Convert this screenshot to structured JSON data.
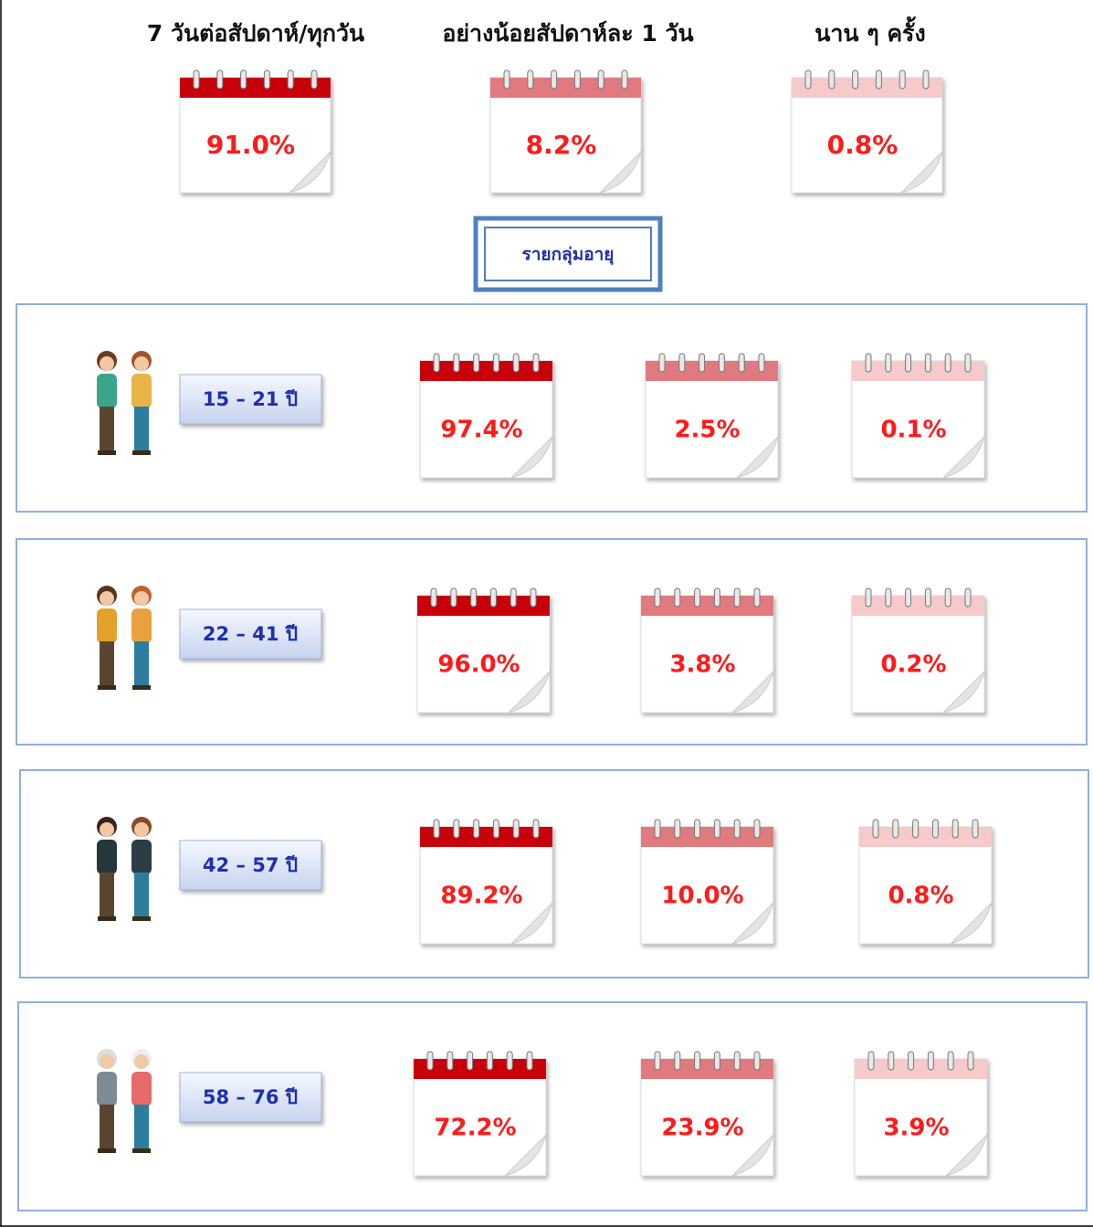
{
  "header": {
    "columns": [
      "7 วันต่อสัปดาห์/ทุกวัน",
      "อย่างน้อยสัปดาห์ละ 1 วัน",
      "นาน ๆ ครั้ง"
    ]
  },
  "overall": [
    "91.0%",
    "8.2%",
    "0.8%"
  ],
  "section_label": "รายกลุ่มอายุ",
  "groups": [
    {
      "age": "15 – 21 ปี",
      "values": [
        "97.4%",
        "2.5%",
        "0.1%"
      ]
    },
    {
      "age": "22 – 41 ปี",
      "values": [
        "96.0%",
        "3.8%",
        "0.2%"
      ]
    },
    {
      "age": "42 – 57 ปี",
      "values": [
        "89.2%",
        "10.0%",
        "0.8%"
      ]
    },
    {
      "age": "58 – 76 ปี",
      "values": [
        "72.2%",
        "23.9%",
        "3.9%"
      ]
    }
  ]
}
